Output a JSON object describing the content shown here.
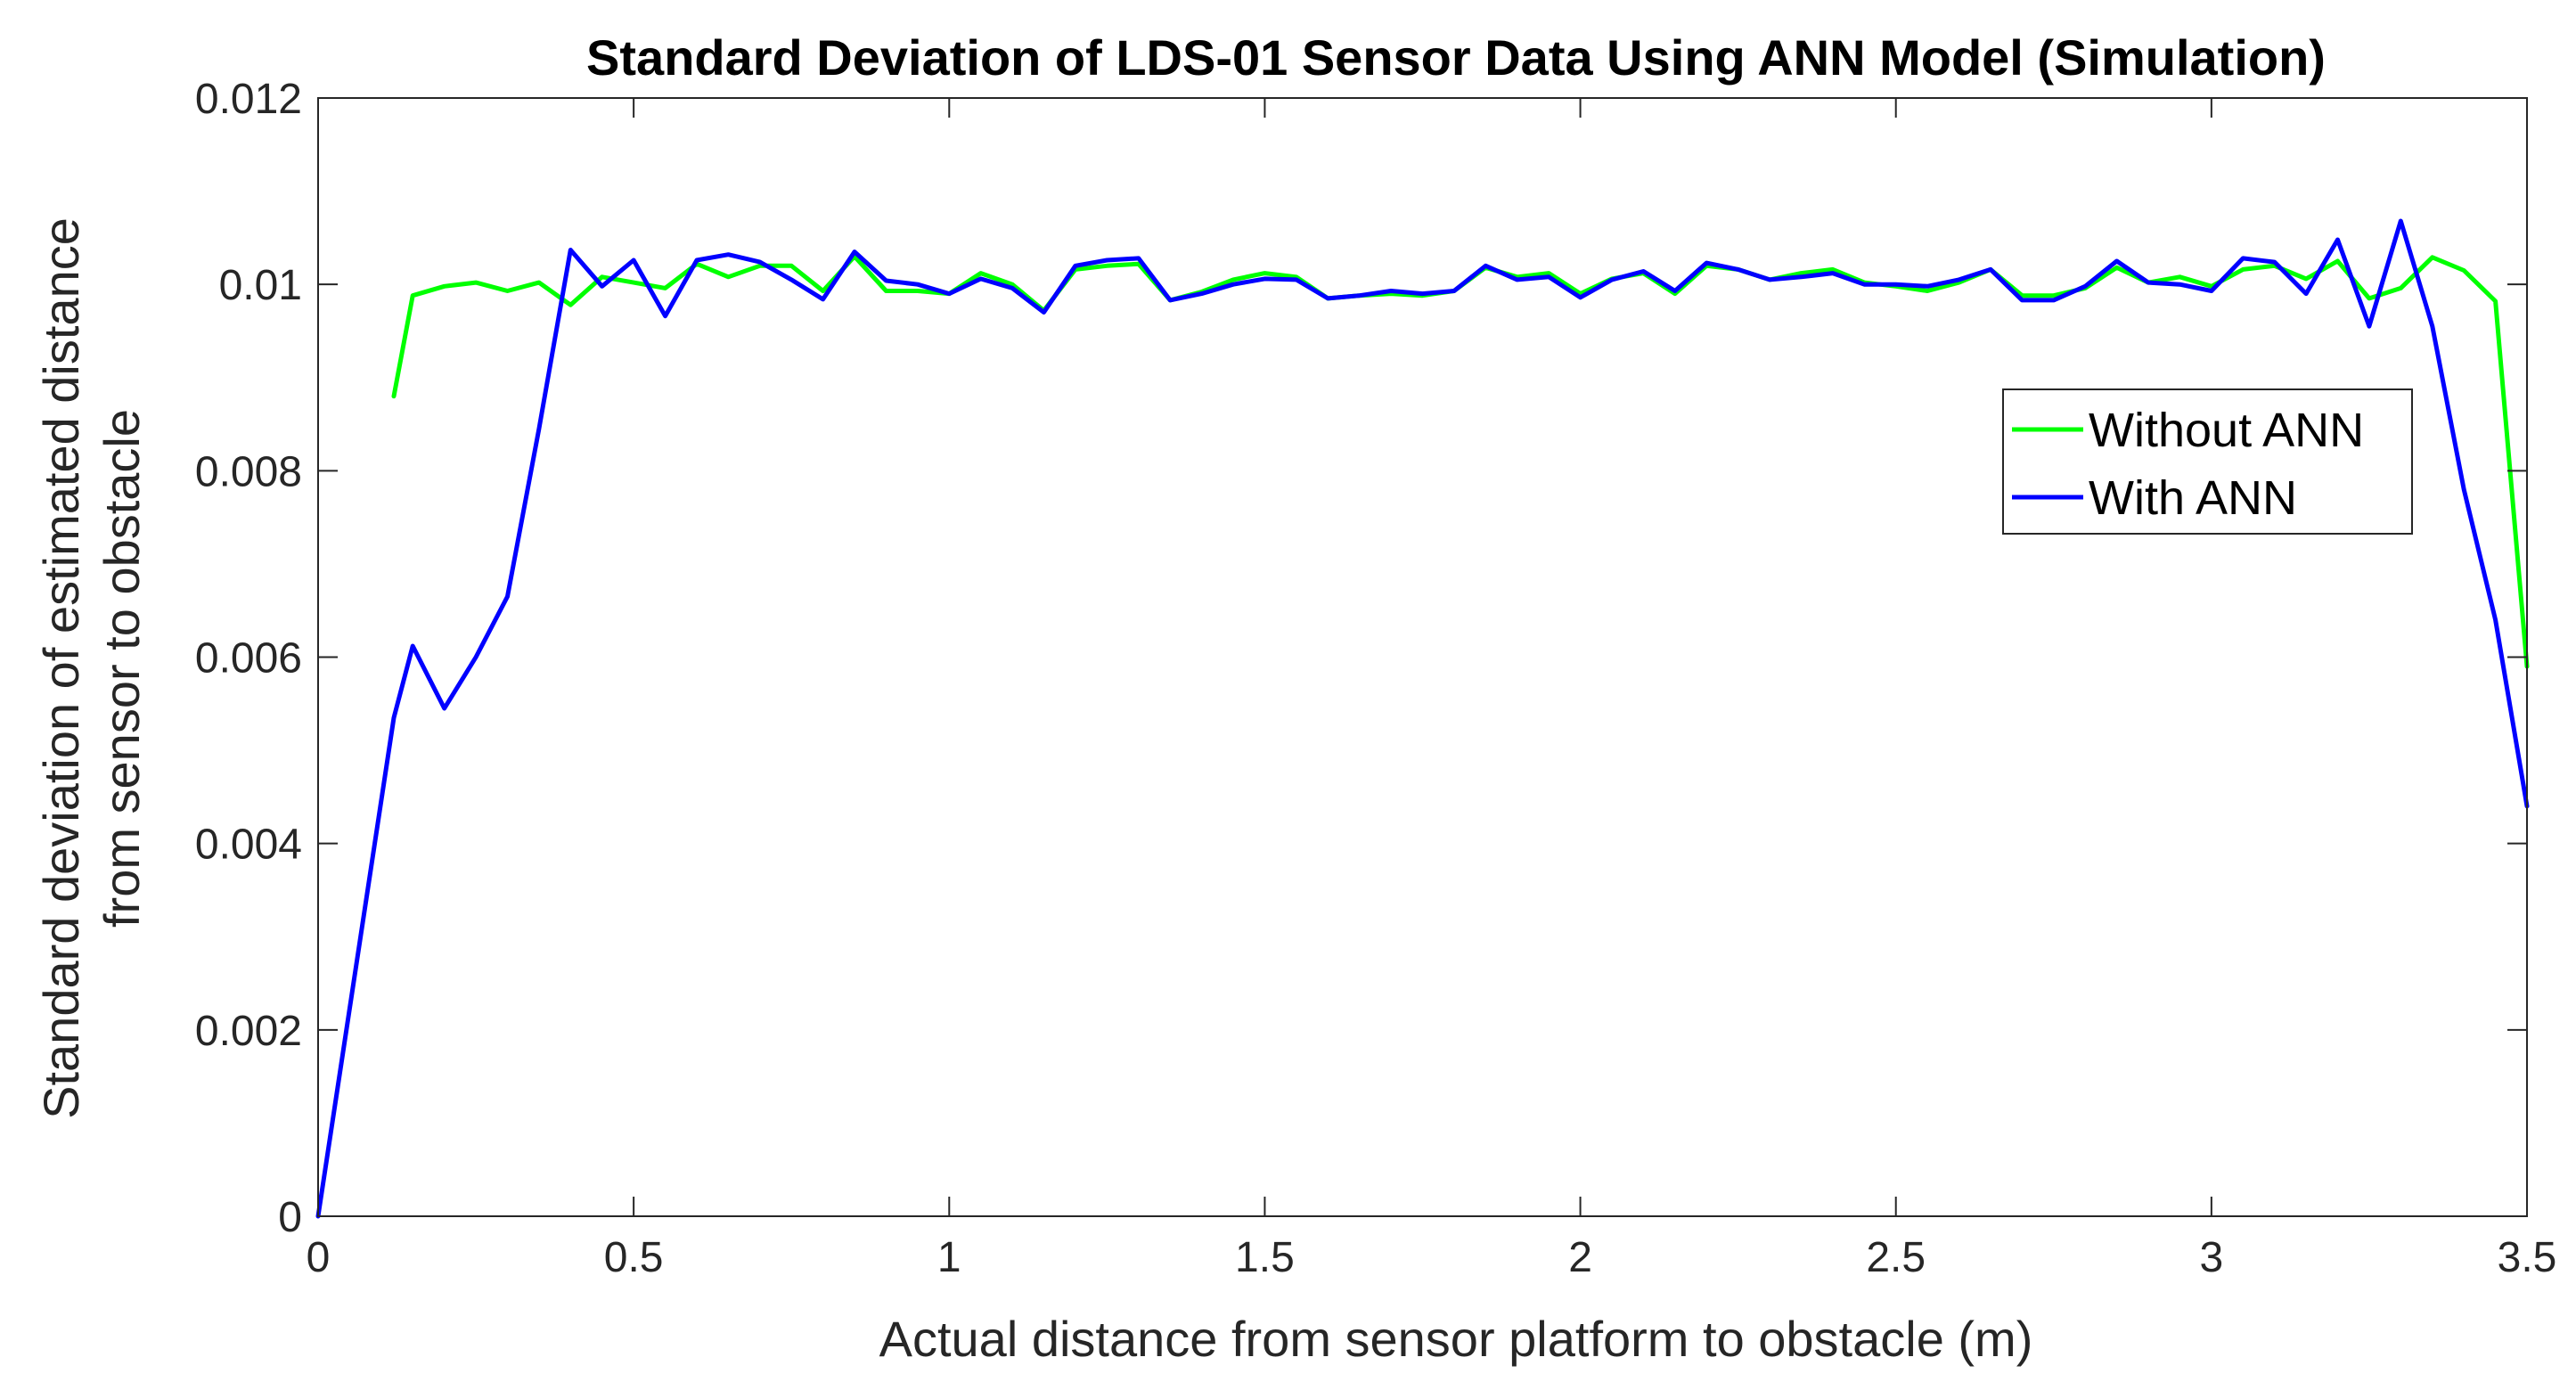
{
  "chart_data": {
    "type": "line",
    "title": "Standard Deviation of LDS-01 Sensor Data Using ANN Model (Simulation)",
    "xlabel": "Actual distance from sensor platform to obstacle (m)",
    "ylabel_lines": [
      "Standard deviation of estimated distance",
      "from sensor to obstacle"
    ],
    "xlim": [
      0,
      3.5
    ],
    "ylim": [
      0,
      0.012
    ],
    "xticks": [
      0,
      0.5,
      1,
      1.5,
      2,
      2.5,
      3,
      3.5
    ],
    "xtick_labels": [
      "0",
      "0.5",
      "1",
      "1.5",
      "2",
      "2.5",
      "3",
      "3.5"
    ],
    "yticks": [
      0,
      0.002,
      0.004,
      0.006,
      0.008,
      0.01,
      0.012
    ],
    "ytick_labels": [
      "0",
      "0.002",
      "0.004",
      "0.006",
      "0.008",
      "0.01",
      "0.012"
    ],
    "grid": false,
    "legend_position": "upper-right",
    "series": [
      {
        "name": "Without ANN",
        "color": "#00ff00",
        "x": [
          0.12,
          0.15,
          0.2,
          0.25,
          0.3,
          0.35,
          0.4,
          0.45,
          0.5,
          0.55,
          0.6,
          0.65,
          0.7,
          0.75,
          0.8,
          0.85,
          0.9,
          0.95,
          1.0,
          1.05,
          1.1,
          1.15,
          1.2,
          1.25,
          1.3,
          1.35,
          1.4,
          1.45,
          1.5,
          1.55,
          1.6,
          1.65,
          1.7,
          1.75,
          1.8,
          1.85,
          1.9,
          1.95,
          2.0,
          2.05,
          2.1,
          2.15,
          2.2,
          2.25,
          2.3,
          2.35,
          2.4,
          2.45,
          2.5,
          2.55,
          2.6,
          2.65,
          2.7,
          2.75,
          2.8,
          2.85,
          2.9,
          2.95,
          3.0,
          3.05,
          3.1,
          3.15,
          3.2,
          3.25,
          3.3,
          3.35,
          3.4,
          3.45,
          3.5
        ],
        "values": [
          0.0088,
          0.00988,
          0.00998,
          0.01002,
          0.00993,
          0.01002,
          0.00978,
          0.01008,
          0.01002,
          0.00996,
          0.01022,
          0.01008,
          0.0102,
          0.0102,
          0.00993,
          0.0103,
          0.00993,
          0.00993,
          0.0099,
          0.01012,
          0.01,
          0.00972,
          0.01016,
          0.0102,
          0.01022,
          0.00983,
          0.00992,
          0.01005,
          0.01012,
          0.01008,
          0.00985,
          0.00988,
          0.0099,
          0.00988,
          0.00993,
          0.01018,
          0.01008,
          0.01012,
          0.0099,
          0.01006,
          0.01012,
          0.0099,
          0.0102,
          0.01016,
          0.01005,
          0.01012,
          0.01016,
          0.01002,
          0.00998,
          0.00993,
          0.01002,
          0.01016,
          0.00988,
          0.00988,
          0.00996,
          0.01018,
          0.01002,
          0.01008,
          0.00998,
          0.01016,
          0.0102,
          0.01006,
          0.01025,
          0.00985,
          0.00996,
          0.01029,
          0.01015,
          0.00982,
          0.0059
        ]
      },
      {
        "name": "With ANN",
        "color": "#0000ff",
        "x": [
          0.0,
          0.12,
          0.15,
          0.2,
          0.25,
          0.3,
          0.35,
          0.4,
          0.45,
          0.5,
          0.55,
          0.6,
          0.65,
          0.7,
          0.75,
          0.8,
          0.85,
          0.9,
          0.95,
          1.0,
          1.05,
          1.1,
          1.15,
          1.2,
          1.25,
          1.3,
          1.35,
          1.4,
          1.45,
          1.5,
          1.55,
          1.6,
          1.65,
          1.7,
          1.75,
          1.8,
          1.85,
          1.9,
          1.95,
          2.0,
          2.05,
          2.1,
          2.15,
          2.2,
          2.25,
          2.3,
          2.35,
          2.4,
          2.45,
          2.5,
          2.55,
          2.6,
          2.65,
          2.7,
          2.75,
          2.8,
          2.85,
          2.9,
          2.95,
          3.0,
          3.05,
          3.1,
          3.15,
          3.2,
          3.25,
          3.3,
          3.35,
          3.4,
          3.45,
          3.5
        ],
        "values": [
          0.0,
          0.00535,
          0.00612,
          0.00545,
          0.006,
          0.00665,
          0.00845,
          0.01037,
          0.00998,
          0.01026,
          0.00966,
          0.01026,
          0.01032,
          0.01024,
          0.01005,
          0.00984,
          0.01035,
          0.01004,
          0.01,
          0.0099,
          0.01006,
          0.00996,
          0.0097,
          0.0102,
          0.01026,
          0.01028,
          0.00983,
          0.0099,
          0.01,
          0.01006,
          0.01005,
          0.00985,
          0.00988,
          0.00993,
          0.0099,
          0.00993,
          0.0102,
          0.01005,
          0.01008,
          0.00986,
          0.01005,
          0.01014,
          0.00993,
          0.01023,
          0.01016,
          0.01005,
          0.01008,
          0.01012,
          0.01,
          0.01,
          0.00998,
          0.01005,
          0.01016,
          0.00983,
          0.00983,
          0.00998,
          0.01025,
          0.01002,
          0.01,
          0.00993,
          0.01028,
          0.01024,
          0.0099,
          0.01048,
          0.00955,
          0.01068,
          0.00955,
          0.0078,
          0.0064,
          0.0044
        ]
      }
    ]
  }
}
